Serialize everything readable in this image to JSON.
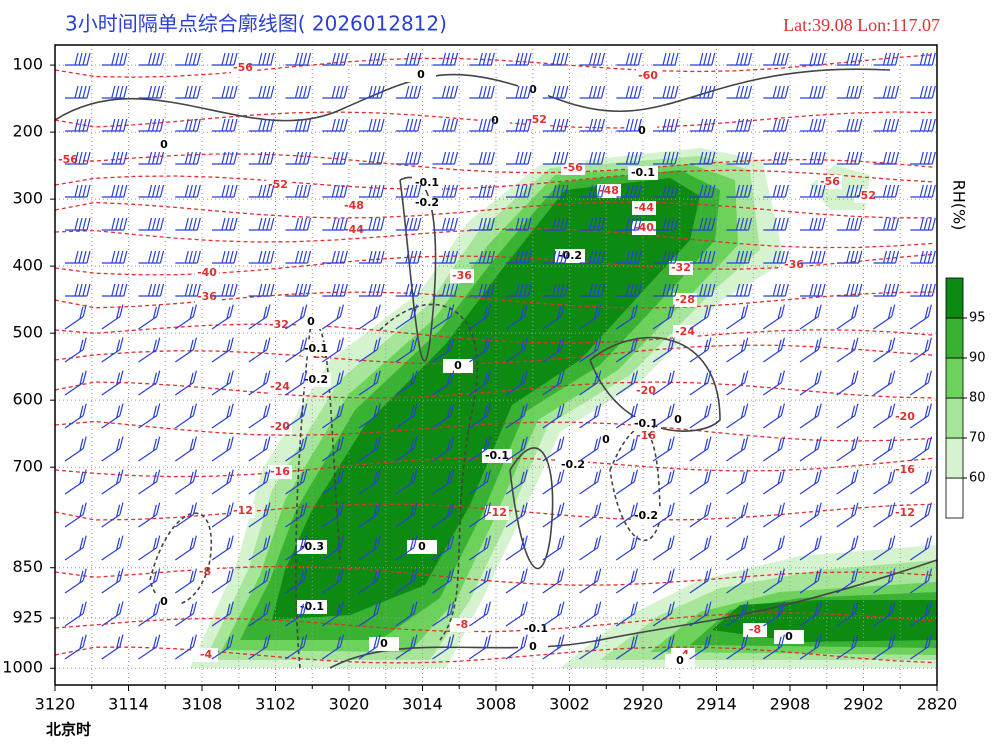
{
  "chart_data": {
    "type": "contour",
    "title": "3小时间隔单点综合廓线图( 2026012812)",
    "location": "Lat:39.08  Lon:117.07",
    "x_label": "北京时",
    "categories": [
      "3120",
      "3114",
      "3108",
      "3102",
      "3020",
      "3014",
      "3008",
      "3002",
      "2920",
      "2914",
      "2908",
      "2902",
      "2820"
    ],
    "ylim": [
      1025,
      70
    ],
    "yticks": [
      100,
      200,
      300,
      400,
      500,
      600,
      700,
      850,
      925,
      1000
    ],
    "grid": true,
    "temperature_color": "#e03030",
    "temperature_labels": [
      -56,
      -60,
      -52,
      -56,
      -52,
      -56,
      -48,
      -44,
      -40,
      -56,
      -52,
      -48,
      -44,
      -36,
      -32,
      -36,
      -40,
      -36,
      -32,
      -28,
      -24,
      -28,
      -24,
      -20,
      -20,
      -20,
      -16,
      -16,
      -16,
      -12,
      -12,
      -12,
      -8,
      -8,
      -8,
      -4,
      -4
    ],
    "omega_color": "#444444",
    "omega_labels": [
      0,
      0,
      0,
      0,
      0,
      -0.1,
      -0.2,
      -0.1,
      -0.2,
      0,
      -0.1,
      -0.2,
      0,
      -0.1,
      -0.2,
      -0.1,
      0,
      -0.2,
      0,
      -0.3,
      0,
      -0.1,
      0,
      0,
      -0.1,
      0,
      0,
      0
    ],
    "wind_color": "#2a3fd6",
    "colorbar": {
      "label": "RH(%)",
      "ticks": [
        60,
        70,
        80,
        90,
        95
      ],
      "colors": [
        "#ffffff",
        "#d6f3cf",
        "#a6e59a",
        "#6cd25c",
        "#39b133",
        "#0d8a12"
      ]
    }
  }
}
